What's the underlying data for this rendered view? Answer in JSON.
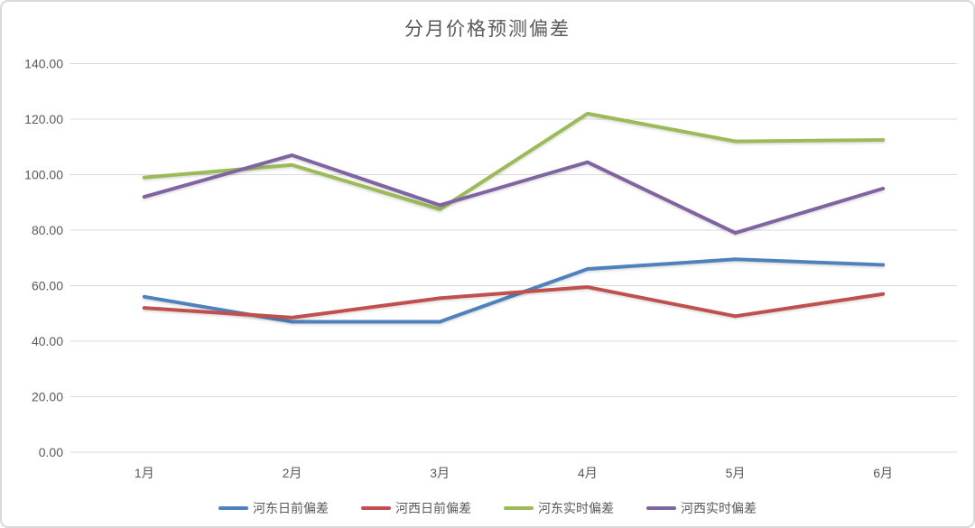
{
  "chart_data": {
    "type": "line",
    "title": "分月价格预测偏差",
    "categories": [
      "1月",
      "2月",
      "3月",
      "4月",
      "5月",
      "6月"
    ],
    "series": [
      {
        "name": "河东日前偏差",
        "color": "#4F81BD",
        "values": [
          56,
          47,
          47,
          66,
          69.5,
          67.5
        ]
      },
      {
        "name": "河西日前偏差",
        "color": "#C0504D",
        "values": [
          52,
          48.5,
          55.5,
          59.5,
          49,
          57
        ]
      },
      {
        "name": "河东实时偏差",
        "color": "#9BBB59",
        "values": [
          99,
          103.5,
          87.5,
          122,
          112,
          112.5
        ]
      },
      {
        "name": "河西实时偏差",
        "color": "#8064A2",
        "values": [
          92,
          107,
          89,
          104.5,
          79,
          95
        ]
      }
    ],
    "xlabel": "",
    "ylabel": "",
    "ylim": [
      0,
      140
    ],
    "ytick_step": 20,
    "ytick_labels": [
      "0.00",
      "20.00",
      "40.00",
      "60.00",
      "80.00",
      "100.00",
      "120.00",
      "140.00"
    ],
    "grid": true,
    "legend_position": "bottom",
    "colors": {
      "text": "#595959",
      "gridline": "#D9D9D9",
      "frame_border": "#D9D9D9",
      "background": "#FFFFFF"
    }
  }
}
